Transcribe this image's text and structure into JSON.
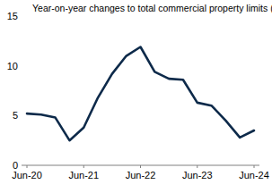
{
  "chart_data": {
    "type": "line",
    "title": "Year-on-year changes to total commercial property limits (%)",
    "categories": [
      "Jun-20",
      null,
      null,
      null,
      "Jun-21",
      null,
      null,
      null,
      "Jun-22",
      null,
      null,
      null,
      "Jun-23",
      null,
      null,
      null,
      "Jun-24"
    ],
    "values": [
      5.2,
      5.1,
      4.8,
      2.5,
      3.8,
      6.8,
      9.2,
      11.0,
      11.9,
      9.4,
      8.7,
      8.6,
      6.3,
      6.0,
      4.5,
      2.8,
      3.5
    ],
    "color": "#0d2a4a",
    "ylim": [
      0,
      15
    ],
    "yticks": [
      0,
      5,
      10,
      15
    ],
    "grid": false
  }
}
